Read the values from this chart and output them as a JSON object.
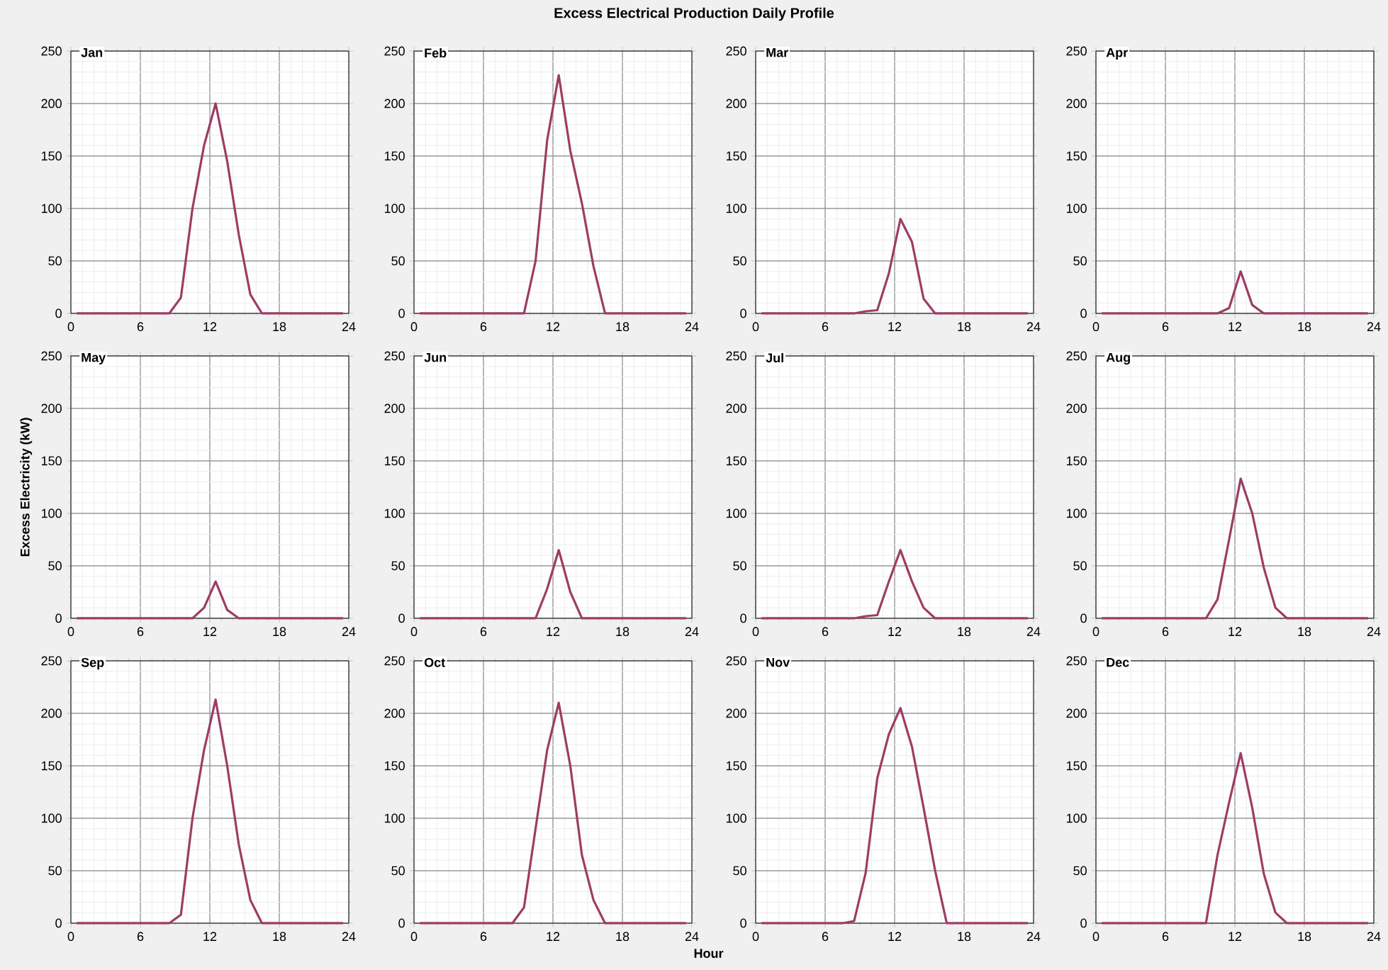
{
  "chart_data": [
    {
      "type": "line",
      "title": "Jan",
      "annotations": [
        "Excess Electrical Production Daily Profile"
      ],
      "x": [
        0.5,
        1.5,
        2.5,
        3.5,
        4.5,
        5.5,
        6.5,
        7.5,
        8.5,
        9.5,
        10.5,
        11.5,
        12.5,
        13.5,
        14.5,
        15.5,
        16.5,
        17.5,
        18.5,
        19.5,
        20.5,
        21.5,
        22.5,
        23.5
      ],
      "series": [
        {
          "color": "#9e3d64",
          "values": [
            0,
            0,
            0,
            0,
            0,
            0,
            0,
            0,
            0,
            15,
            100,
            160,
            200,
            145,
            75,
            18,
            0,
            0,
            0,
            0,
            0,
            0,
            0,
            0
          ]
        }
      ],
      "xlim": [
        0,
        24
      ],
      "xticks": [
        0,
        6,
        12,
        18,
        24
      ],
      "ylim": [
        0,
        250
      ],
      "yticks": [
        0,
        50,
        100,
        150,
        200,
        250
      ],
      "grid": true
    },
    {
      "type": "line",
      "title": "Feb",
      "x": [
        0.5,
        1.5,
        2.5,
        3.5,
        4.5,
        5.5,
        6.5,
        7.5,
        8.5,
        9.5,
        10.5,
        11.5,
        12.5,
        13.5,
        14.5,
        15.5,
        16.5,
        17.5,
        18.5,
        19.5,
        20.5,
        21.5,
        22.5,
        23.5
      ],
      "series": [
        {
          "color": "#9e3d64",
          "values": [
            0,
            0,
            0,
            0,
            0,
            0,
            0,
            0,
            0,
            0,
            50,
            165,
            227,
            155,
            105,
            45,
            0,
            0,
            0,
            0,
            0,
            0,
            0,
            0
          ]
        }
      ],
      "xlim": [
        0,
        24
      ],
      "xticks": [
        0,
        6,
        12,
        18,
        24
      ],
      "ylim": [
        0,
        250
      ],
      "yticks": [
        0,
        50,
        100,
        150,
        200,
        250
      ],
      "grid": true
    },
    {
      "type": "line",
      "title": "Mar",
      "x": [
        0.5,
        1.5,
        2.5,
        3.5,
        4.5,
        5.5,
        6.5,
        7.5,
        8.5,
        9.5,
        10.5,
        11.5,
        12.5,
        13.5,
        14.5,
        15.5,
        16.5,
        17.5,
        18.5,
        19.5,
        20.5,
        21.5,
        22.5,
        23.5
      ],
      "series": [
        {
          "color": "#9e3d64",
          "values": [
            0,
            0,
            0,
            0,
            0,
            0,
            0,
            0,
            0,
            2,
            3,
            38,
            90,
            68,
            14,
            0,
            0,
            0,
            0,
            0,
            0,
            0,
            0,
            0
          ]
        }
      ],
      "xlim": [
        0,
        24
      ],
      "xticks": [
        0,
        6,
        12,
        18,
        24
      ],
      "ylim": [
        0,
        250
      ],
      "yticks": [
        0,
        50,
        100,
        150,
        200,
        250
      ],
      "grid": true
    },
    {
      "type": "line",
      "title": "Apr",
      "x": [
        0.5,
        1.5,
        2.5,
        3.5,
        4.5,
        5.5,
        6.5,
        7.5,
        8.5,
        9.5,
        10.5,
        11.5,
        12.5,
        13.5,
        14.5,
        15.5,
        16.5,
        17.5,
        18.5,
        19.5,
        20.5,
        21.5,
        22.5,
        23.5
      ],
      "series": [
        {
          "color": "#9e3d64",
          "values": [
            0,
            0,
            0,
            0,
            0,
            0,
            0,
            0,
            0,
            0,
            0,
            5,
            40,
            8,
            0,
            0,
            0,
            0,
            0,
            0,
            0,
            0,
            0,
            0
          ]
        }
      ],
      "xlim": [
        0,
        24
      ],
      "xticks": [
        0,
        6,
        12,
        18,
        24
      ],
      "ylim": [
        0,
        250
      ],
      "yticks": [
        0,
        50,
        100,
        150,
        200,
        250
      ],
      "grid": true
    },
    {
      "type": "line",
      "title": "May",
      "ylabel": "Excess Electricity (kW)",
      "x": [
        0.5,
        1.5,
        2.5,
        3.5,
        4.5,
        5.5,
        6.5,
        7.5,
        8.5,
        9.5,
        10.5,
        11.5,
        12.5,
        13.5,
        14.5,
        15.5,
        16.5,
        17.5,
        18.5,
        19.5,
        20.5,
        21.5,
        22.5,
        23.5
      ],
      "series": [
        {
          "color": "#9e3d64",
          "values": [
            0,
            0,
            0,
            0,
            0,
            0,
            0,
            0,
            0,
            0,
            0,
            10,
            35,
            8,
            0,
            0,
            0,
            0,
            0,
            0,
            0,
            0,
            0,
            0
          ]
        }
      ],
      "xlim": [
        0,
        24
      ],
      "xticks": [
        0,
        6,
        12,
        18,
        24
      ],
      "ylim": [
        0,
        250
      ],
      "yticks": [
        0,
        50,
        100,
        150,
        200,
        250
      ],
      "grid": true
    },
    {
      "type": "line",
      "title": "Jun",
      "x": [
        0.5,
        1.5,
        2.5,
        3.5,
        4.5,
        5.5,
        6.5,
        7.5,
        8.5,
        9.5,
        10.5,
        11.5,
        12.5,
        13.5,
        14.5,
        15.5,
        16.5,
        17.5,
        18.5,
        19.5,
        20.5,
        21.5,
        22.5,
        23.5
      ],
      "series": [
        {
          "color": "#9e3d64",
          "values": [
            0,
            0,
            0,
            0,
            0,
            0,
            0,
            0,
            0,
            0,
            0,
            28,
            65,
            25,
            0,
            0,
            0,
            0,
            0,
            0,
            0,
            0,
            0,
            0
          ]
        }
      ],
      "xlim": [
        0,
        24
      ],
      "xticks": [
        0,
        6,
        12,
        18,
        24
      ],
      "ylim": [
        0,
        250
      ],
      "yticks": [
        0,
        50,
        100,
        150,
        200,
        250
      ],
      "grid": true
    },
    {
      "type": "line",
      "title": "Jul",
      "x": [
        0.5,
        1.5,
        2.5,
        3.5,
        4.5,
        5.5,
        6.5,
        7.5,
        8.5,
        9.5,
        10.5,
        11.5,
        12.5,
        13.5,
        14.5,
        15.5,
        16.5,
        17.5,
        18.5,
        19.5,
        20.5,
        21.5,
        22.5,
        23.5
      ],
      "series": [
        {
          "color": "#9e3d64",
          "values": [
            0,
            0,
            0,
            0,
            0,
            0,
            0,
            0,
            0,
            2,
            3,
            35,
            65,
            35,
            10,
            0,
            0,
            0,
            0,
            0,
            0,
            0,
            0,
            0
          ]
        }
      ],
      "xlim": [
        0,
        24
      ],
      "xticks": [
        0,
        6,
        12,
        18,
        24
      ],
      "ylim": [
        0,
        250
      ],
      "yticks": [
        0,
        50,
        100,
        150,
        200,
        250
      ],
      "grid": true
    },
    {
      "type": "line",
      "title": "Aug",
      "x": [
        0.5,
        1.5,
        2.5,
        3.5,
        4.5,
        5.5,
        6.5,
        7.5,
        8.5,
        9.5,
        10.5,
        11.5,
        12.5,
        13.5,
        14.5,
        15.5,
        16.5,
        17.5,
        18.5,
        19.5,
        20.5,
        21.5,
        22.5,
        23.5
      ],
      "series": [
        {
          "color": "#9e3d64",
          "values": [
            0,
            0,
            0,
            0,
            0,
            0,
            0,
            0,
            0,
            0,
            18,
            75,
            133,
            100,
            48,
            10,
            0,
            0,
            0,
            0,
            0,
            0,
            0,
            0
          ]
        }
      ],
      "xlim": [
        0,
        24
      ],
      "xticks": [
        0,
        6,
        12,
        18,
        24
      ],
      "ylim": [
        0,
        250
      ],
      "yticks": [
        0,
        50,
        100,
        150,
        200,
        250
      ],
      "grid": true
    },
    {
      "type": "line",
      "title": "Sep",
      "x": [
        0.5,
        1.5,
        2.5,
        3.5,
        4.5,
        5.5,
        6.5,
        7.5,
        8.5,
        9.5,
        10.5,
        11.5,
        12.5,
        13.5,
        14.5,
        15.5,
        16.5,
        17.5,
        18.5,
        19.5,
        20.5,
        21.5,
        22.5,
        23.5
      ],
      "series": [
        {
          "color": "#9e3d64",
          "values": [
            0,
            0,
            0,
            0,
            0,
            0,
            0,
            0,
            0,
            8,
            100,
            165,
            213,
            150,
            75,
            22,
            0,
            0,
            0,
            0,
            0,
            0,
            0,
            0
          ]
        }
      ],
      "xlim": [
        0,
        24
      ],
      "xticks": [
        0,
        6,
        12,
        18,
        24
      ],
      "ylim": [
        0,
        250
      ],
      "yticks": [
        0,
        50,
        100,
        150,
        200,
        250
      ],
      "grid": true
    },
    {
      "type": "line",
      "title": "Oct",
      "xlabel": "Hour",
      "x": [
        0.5,
        1.5,
        2.5,
        3.5,
        4.5,
        5.5,
        6.5,
        7.5,
        8.5,
        9.5,
        10.5,
        11.5,
        12.5,
        13.5,
        14.5,
        15.5,
        16.5,
        17.5,
        18.5,
        19.5,
        20.5,
        21.5,
        22.5,
        23.5
      ],
      "series": [
        {
          "color": "#9e3d64",
          "values": [
            0,
            0,
            0,
            0,
            0,
            0,
            0,
            0,
            0,
            15,
            90,
            165,
            210,
            150,
            65,
            22,
            0,
            0,
            0,
            0,
            0,
            0,
            0,
            0
          ]
        }
      ],
      "xlim": [
        0,
        24
      ],
      "xticks": [
        0,
        6,
        12,
        18,
        24
      ],
      "ylim": [
        0,
        250
      ],
      "yticks": [
        0,
        50,
        100,
        150,
        200,
        250
      ],
      "grid": true
    },
    {
      "type": "line",
      "title": "Nov",
      "x": [
        0.5,
        1.5,
        2.5,
        3.5,
        4.5,
        5.5,
        6.5,
        7.5,
        8.5,
        9.5,
        10.5,
        11.5,
        12.5,
        13.5,
        14.5,
        15.5,
        16.5,
        17.5,
        18.5,
        19.5,
        20.5,
        21.5,
        22.5,
        23.5
      ],
      "series": [
        {
          "color": "#9e3d64",
          "values": [
            0,
            0,
            0,
            0,
            0,
            0,
            0,
            0,
            2,
            48,
            138,
            180,
            205,
            168,
            110,
            50,
            0,
            0,
            0,
            0,
            0,
            0,
            0,
            0
          ]
        }
      ],
      "xlim": [
        0,
        24
      ],
      "xticks": [
        0,
        6,
        12,
        18,
        24
      ],
      "ylim": [
        0,
        250
      ],
      "yticks": [
        0,
        50,
        100,
        150,
        200,
        250
      ],
      "grid": true
    },
    {
      "type": "line",
      "title": "Dec",
      "x": [
        0.5,
        1.5,
        2.5,
        3.5,
        4.5,
        5.5,
        6.5,
        7.5,
        8.5,
        9.5,
        10.5,
        11.5,
        12.5,
        13.5,
        14.5,
        15.5,
        16.5,
        17.5,
        18.5,
        19.5,
        20.5,
        21.5,
        22.5,
        23.5
      ],
      "series": [
        {
          "color": "#9e3d64",
          "values": [
            0,
            0,
            0,
            0,
            0,
            0,
            0,
            0,
            0,
            0,
            65,
            115,
            162,
            110,
            47,
            10,
            0,
            0,
            0,
            0,
            0,
            0,
            0,
            0
          ]
        }
      ],
      "xlim": [
        0,
        24
      ],
      "xticks": [
        0,
        6,
        12,
        18,
        24
      ],
      "ylim": [
        0,
        250
      ],
      "yticks": [
        0,
        50,
        100,
        150,
        200,
        250
      ],
      "grid": true
    }
  ]
}
